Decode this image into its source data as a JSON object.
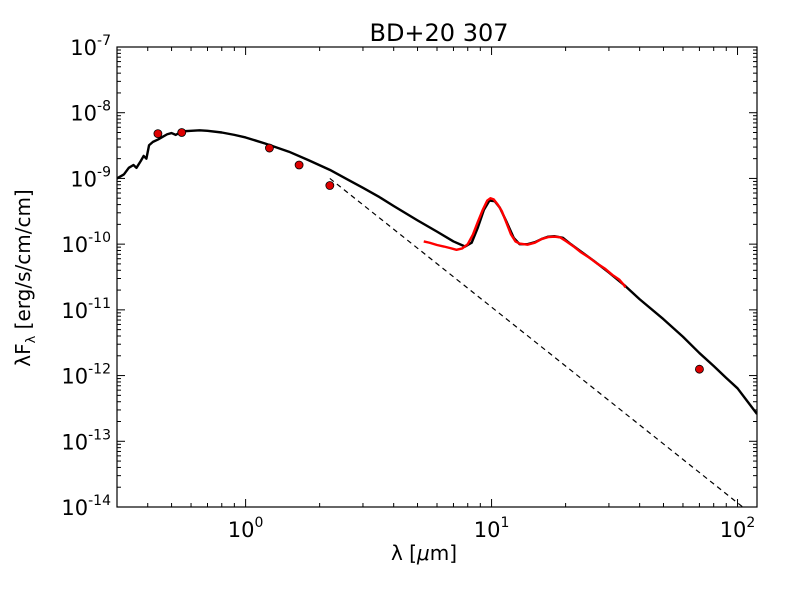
{
  "chart_data": {
    "type": "line",
    "title": "BD+20 307",
    "xlabel_parts": [
      "λ [",
      "μ",
      "m]"
    ],
    "ylabel_parts": [
      "λF",
      "λ",
      " [erg/s/cm/cm]"
    ],
    "xscale": "log",
    "yscale": "log",
    "xlim": [
      0.3,
      120
    ],
    "ylim": [
      1e-14,
      1e-07
    ],
    "grid": false,
    "x_ticks": [
      {
        "value": 1,
        "base": "10",
        "exp": "0"
      },
      {
        "value": 10,
        "base": "10",
        "exp": "1"
      },
      {
        "value": 100,
        "base": "10",
        "exp": "2"
      }
    ],
    "y_ticks": [
      {
        "value": 1e-07,
        "base": "10",
        "exp": "-7"
      },
      {
        "value": 1e-08,
        "base": "10",
        "exp": "-8"
      },
      {
        "value": 1e-09,
        "base": "10",
        "exp": "-9"
      },
      {
        "value": 1e-10,
        "base": "10",
        "exp": "-10"
      },
      {
        "value": 1e-11,
        "base": "10",
        "exp": "-11"
      },
      {
        "value": 1e-12,
        "base": "10",
        "exp": "-12"
      },
      {
        "value": 1e-13,
        "base": "10",
        "exp": "-13"
      },
      {
        "value": 1e-14,
        "base": "10",
        "exp": "-14"
      }
    ],
    "series": [
      {
        "style": "solid-black",
        "color": "#000000",
        "points": [
          [
            0.3,
            1e-09
          ],
          [
            0.32,
            1.15e-09
          ],
          [
            0.335,
            1.45e-09
          ],
          [
            0.35,
            1.6e-09
          ],
          [
            0.36,
            1.45e-09
          ],
          [
            0.375,
            1.85e-09
          ],
          [
            0.385,
            2.2e-09
          ],
          [
            0.395,
            2e-09
          ],
          [
            0.405,
            3.2e-09
          ],
          [
            0.42,
            3.6e-09
          ],
          [
            0.44,
            3.9e-09
          ],
          [
            0.46,
            4.3e-09
          ],
          [
            0.48,
            4.7e-09
          ],
          [
            0.5,
            4.9e-09
          ],
          [
            0.52,
            4.6e-09
          ],
          [
            0.55,
            5.2e-09
          ],
          [
            0.6,
            5.3e-09
          ],
          [
            0.65,
            5.4e-09
          ],
          [
            0.7,
            5.3e-09
          ],
          [
            0.8,
            5e-09
          ],
          [
            0.9,
            4.6e-09
          ],
          [
            1.0,
            4.2e-09
          ],
          [
            1.2,
            3.4e-09
          ],
          [
            1.5,
            2.55e-09
          ],
          [
            1.8,
            1.9e-09
          ],
          [
            2.2,
            1.35e-09
          ],
          [
            2.6,
            9.6e-10
          ],
          [
            3.0,
            7.2e-10
          ],
          [
            3.5,
            5.2e-10
          ],
          [
            4.0,
            3.8e-10
          ],
          [
            5.0,
            2.3e-10
          ],
          [
            6.0,
            1.55e-10
          ],
          [
            7.0,
            1.1e-10
          ],
          [
            7.8,
            9.2e-11
          ],
          [
            8.3,
            1.05e-10
          ],
          [
            8.8,
            1.8e-10
          ],
          [
            9.3,
            3.3e-10
          ],
          [
            9.8,
            4.6e-10
          ],
          [
            10.3,
            4.5e-10
          ],
          [
            10.8,
            3.6e-10
          ],
          [
            11.5,
            2.2e-10
          ],
          [
            12.3,
            1.25e-10
          ],
          [
            13.0,
            1e-10
          ],
          [
            14.0,
            1e-10
          ],
          [
            15.0,
            1.07e-10
          ],
          [
            16.0,
            1.2e-10
          ],
          [
            17.0,
            1.3e-10
          ],
          [
            18.0,
            1.32e-10
          ],
          [
            19.5,
            1.25e-10
          ],
          [
            21.0,
            1e-10
          ],
          [
            23.0,
            7.8e-11
          ],
          [
            26.0,
            5.6e-11
          ],
          [
            30.0,
            3.7e-11
          ],
          [
            35.0,
            2.3e-11
          ],
          [
            40.0,
            1.45e-11
          ],
          [
            50.0,
            7.2e-12
          ],
          [
            60.0,
            3.9e-12
          ],
          [
            70.0,
            2.2e-12
          ],
          [
            80.0,
            1.4e-12
          ],
          [
            90.0,
            9.2e-13
          ],
          [
            100.0,
            6.4e-13
          ],
          [
            110.0,
            4e-13
          ],
          [
            120.0,
            2.6e-13
          ]
        ]
      },
      {
        "style": "dashed-black",
        "color": "#000000",
        "points": [
          [
            2.2,
            1e-09
          ],
          [
            105.0,
            1e-14
          ]
        ]
      },
      {
        "style": "solid-red",
        "color": "#ff0000",
        "points": [
          [
            5.3,
            1.1e-10
          ],
          [
            5.6,
            1.05e-10
          ],
          [
            6.0,
            9.7e-11
          ],
          [
            6.4,
            9.2e-11
          ],
          [
            6.8,
            8.7e-11
          ],
          [
            7.2,
            8.2e-11
          ],
          [
            7.6,
            8.6e-11
          ],
          [
            8.0,
            1e-10
          ],
          [
            8.4,
            1.4e-10
          ],
          [
            8.8,
            2.2e-10
          ],
          [
            9.2,
            3.3e-10
          ],
          [
            9.6,
            4.6e-10
          ],
          [
            9.9,
            5e-10
          ],
          [
            10.2,
            4.8e-10
          ],
          [
            10.6,
            4e-10
          ],
          [
            11.0,
            3.2e-10
          ],
          [
            11.5,
            2.1e-10
          ],
          [
            12.0,
            1.4e-10
          ],
          [
            12.5,
            1.1e-10
          ],
          [
            13.0,
            1.02e-10
          ],
          [
            14.0,
            9.8e-11
          ],
          [
            15.0,
            1.05e-10
          ],
          [
            16.0,
            1.2e-10
          ],
          [
            17.0,
            1.28e-10
          ],
          [
            18.0,
            1.3e-10
          ],
          [
            19.0,
            1.27e-10
          ],
          [
            20.0,
            1.12e-10
          ],
          [
            21.5,
            9.3e-11
          ],
          [
            23.0,
            7.6e-11
          ],
          [
            25.0,
            6.2e-11
          ],
          [
            27.0,
            5e-11
          ],
          [
            29.0,
            4.2e-11
          ],
          [
            31.0,
            3.4e-11
          ],
          [
            33.0,
            2.9e-11
          ],
          [
            34.5,
            2.4e-11
          ],
          [
            35.0,
            2.2e-11
          ]
        ]
      },
      {
        "style": "markers-red",
        "color": "#dd0000",
        "points": [
          [
            0.44,
            4.8e-09
          ],
          [
            0.55,
            5e-09
          ],
          [
            1.25,
            2.9e-09
          ],
          [
            1.65,
            1.6e-09
          ],
          [
            2.2,
            7.8e-10
          ],
          [
            70.0,
            1.25e-12
          ]
        ]
      }
    ]
  }
}
